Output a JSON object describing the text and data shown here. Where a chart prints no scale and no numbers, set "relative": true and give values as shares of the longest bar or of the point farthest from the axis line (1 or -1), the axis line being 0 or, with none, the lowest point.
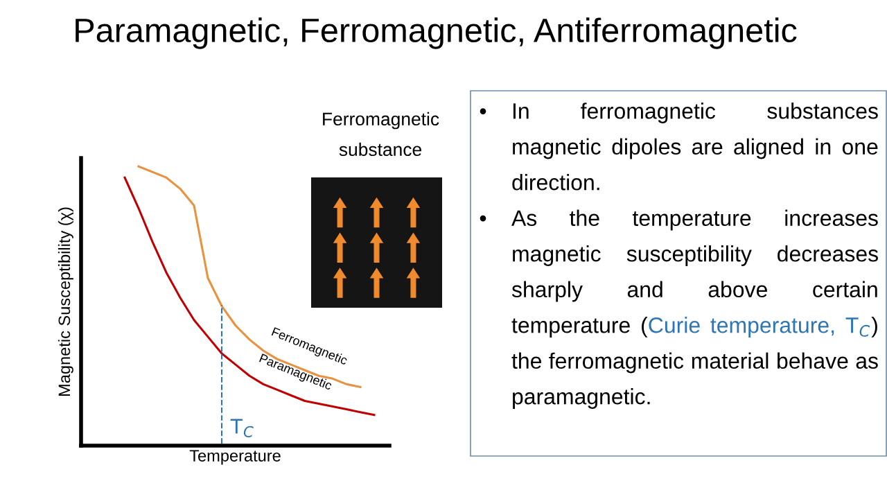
{
  "chart_data": {
    "type": "line",
    "title": "Paramagnetic, Ferromagnetic, Antiferromagnetic",
    "xlabel": "Temperature",
    "ylabel": "Magnetic Susceptibility (χ)",
    "relative": true,
    "categories": [
      null,
      null,
      null,
      null,
      null,
      null,
      null,
      null,
      null,
      null,
      null,
      null,
      null,
      null,
      null,
      null,
      null,
      null,
      null,
      null
    ],
    "series": [
      {
        "name": "Ferromagnetic",
        "color": "#e8913f",
        "values": [
          null,
          null,
          1.0,
          0.98,
          0.96,
          0.92,
          0.86,
          0.6,
          0.5,
          0.43,
          0.38,
          0.34,
          0.31,
          0.29,
          0.27,
          0.25,
          0.24,
          0.22,
          0.21,
          null
        ]
      },
      {
        "name": "Paramagnetic",
        "color": "#c00000",
        "values": [
          null,
          0.96,
          0.85,
          0.73,
          0.62,
          0.53,
          0.45,
          0.39,
          0.33,
          0.29,
          0.25,
          0.22,
          0.2,
          0.18,
          0.16,
          0.15,
          0.14,
          0.13,
          0.12,
          0.11
        ]
      }
    ],
    "annotations": [
      "Ferromagnetic substance",
      "• In ferromagnetic substances magnetic dipoles are aligned in one direction.",
      "• As the temperature increases magnetic susceptibility decreases sharply and above certain temperature (",
      "Curie temperature, T$_{C}$",
      ") the ferromagnetic material behave as paramagnetic.",
      "T$_{C}$"
    ],
    "legend": false,
    "marker": "none",
    "line_style": "solid"
  }
}
